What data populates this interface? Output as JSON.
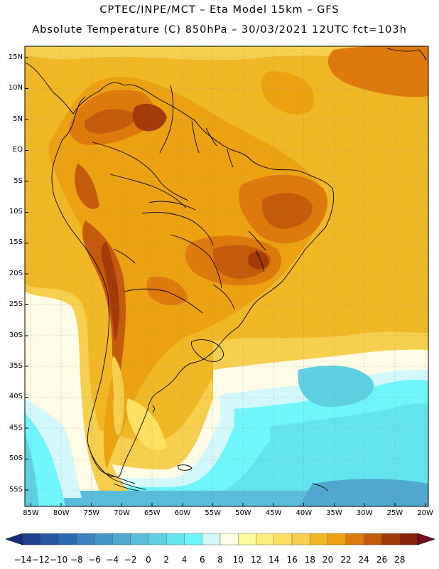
{
  "header": {
    "line1": "CPTEC/INPE/MCT –  Eta Model 15km – GFS",
    "line2": "Absolute Temperature (C) 850hPa – 30/03/2021 12UTC fct=103h"
  },
  "axes": {
    "lat_labels": [
      "15N",
      "10N",
      "5N",
      "EQ",
      "5S",
      "10S",
      "15S",
      "20S",
      "25S",
      "30S",
      "35S",
      "40S",
      "45S",
      "50S",
      "55S"
    ],
    "lon_labels": [
      "85W",
      "80W",
      "75W",
      "70W",
      "65W",
      "60W",
      "55W",
      "50W",
      "45W",
      "40W",
      "35W",
      "30W",
      "25W",
      "20W"
    ],
    "lat_range": [
      -58,
      16.5
    ],
    "lon_range": [
      -86,
      -19.5
    ]
  },
  "colorbar": {
    "labels": [
      "-14",
      "-12",
      "-10",
      "-8",
      "-6",
      "-4",
      "-2",
      "0",
      "2",
      "4",
      "6",
      "8",
      "10",
      "12",
      "14",
      "16",
      "18",
      "20",
      "22",
      "24",
      "26",
      "28"
    ],
    "colors": [
      "#1e3f8e",
      "#2855a2",
      "#2f6bb3",
      "#3a82c0",
      "#4596c8",
      "#50a8d0",
      "#59bcd8",
      "#5fd0e2",
      "#63e4ee",
      "#6ff6fb",
      "#d3f8fb",
      "#fefbe6",
      "#fefaa0",
      "#fdee7d",
      "#fbe062",
      "#f6cf4e",
      "#f1b826",
      "#eba110",
      "#dd7a0b",
      "#c55a0a",
      "#a4390a",
      "#872108"
    ]
  },
  "map": {
    "icon": "south-america-temperature-map",
    "grid": true
  }
}
